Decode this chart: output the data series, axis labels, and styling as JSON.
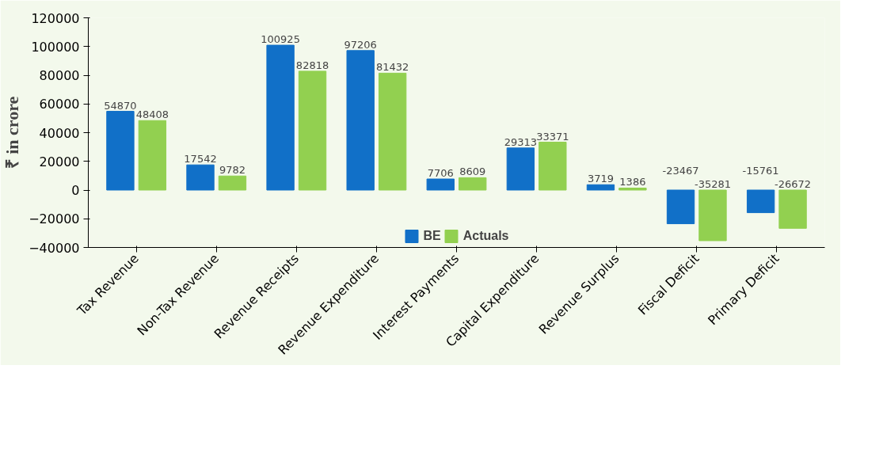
{
  "chart_data": {
    "type": "bar",
    "ylabel": "₹ in crore",
    "categories": [
      "Tax Revenue",
      "Non-Tax Revenue",
      "Revenue Receipts",
      "Revenue Expenditure",
      "Interest Payments",
      "Capital Expenditure",
      "Revenue Surplus",
      "Fiscal Deficit",
      "Primary Deficit"
    ],
    "series": [
      {
        "name": "BE",
        "color": "#1170c8",
        "values": [
          54870,
          17542,
          100925,
          97206,
          7706,
          29313,
          3719,
          -23467,
          -15761
        ]
      },
      {
        "name": "Actuals",
        "color": "#92d050",
        "values": [
          48408,
          9782,
          82818,
          81432,
          8609,
          33371,
          1386,
          -35281,
          -26672
        ]
      }
    ],
    "ylim": [
      -40000,
      120000
    ],
    "yticks": [
      -40000,
      -20000,
      0,
      20000,
      40000,
      60000,
      80000,
      100000,
      120000
    ],
    "data_labels": true,
    "legend": "bottom",
    "grid": false
  }
}
